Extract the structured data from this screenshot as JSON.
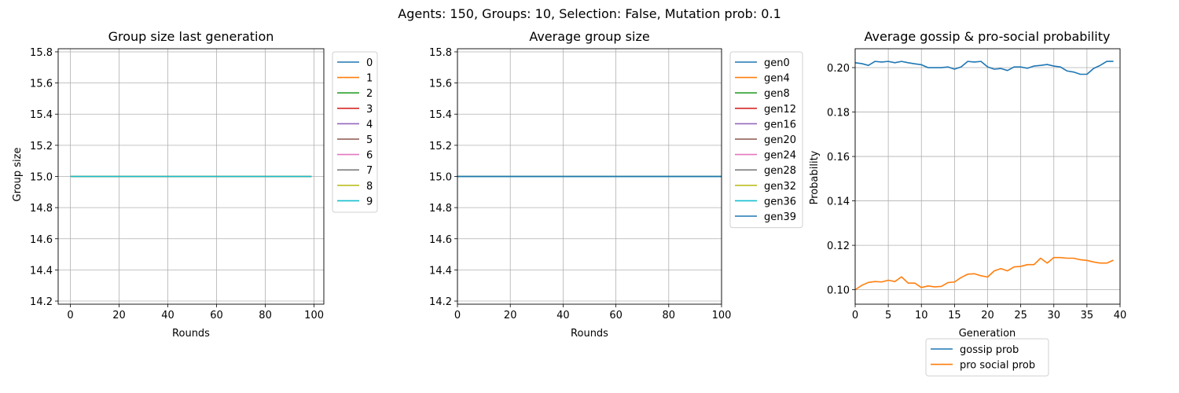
{
  "suptitle": "Agents: 150, Groups: 10, Selection: False, Mutation prob: 0.1",
  "chart_data": [
    {
      "type": "line",
      "title": "Group size last generation",
      "xlabel": "Rounds",
      "ylabel": "Group size",
      "xlim": [
        -5,
        104
      ],
      "ylim": [
        14.18,
        15.82
      ],
      "xticks": [
        0,
        20,
        40,
        60,
        80,
        100
      ],
      "yticks": [
        14.2,
        14.4,
        14.6,
        14.8,
        15.0,
        15.2,
        15.4,
        15.6,
        15.8
      ],
      "grid": true,
      "legend_position": "outside-right",
      "x_range": [
        0,
        99
      ],
      "series": [
        {
          "name": "0",
          "value": 15.0,
          "color": "#1f77b4"
        },
        {
          "name": "1",
          "value": 15.0,
          "color": "#ff7f0e"
        },
        {
          "name": "2",
          "value": 15.0,
          "color": "#2ca02c"
        },
        {
          "name": "3",
          "value": 15.0,
          "color": "#d62728"
        },
        {
          "name": "4",
          "value": 15.0,
          "color": "#9467bd"
        },
        {
          "name": "5",
          "value": 15.0,
          "color": "#8c564b"
        },
        {
          "name": "6",
          "value": 15.0,
          "color": "#e377c2"
        },
        {
          "name": "7",
          "value": 15.0,
          "color": "#7f7f7f"
        },
        {
          "name": "8",
          "value": 15.0,
          "color": "#bcbd22"
        },
        {
          "name": "9",
          "value": 15.0,
          "color": "#17becf"
        }
      ]
    },
    {
      "type": "line",
      "title": "Average group size",
      "xlabel": "Rounds",
      "ylabel": "",
      "xlim": [
        0,
        100
      ],
      "ylim": [
        14.18,
        15.82
      ],
      "xticks": [
        0,
        20,
        40,
        60,
        80,
        100
      ],
      "yticks": [
        14.2,
        14.4,
        14.6,
        14.8,
        15.0,
        15.2,
        15.4,
        15.6,
        15.8
      ],
      "grid": true,
      "legend_position": "outside-right",
      "x_range": [
        0,
        100
      ],
      "series": [
        {
          "name": "gen0",
          "value": 15.0,
          "color": "#1f77b4"
        },
        {
          "name": "gen4",
          "value": 15.0,
          "color": "#ff7f0e"
        },
        {
          "name": "gen8",
          "value": 15.0,
          "color": "#2ca02c"
        },
        {
          "name": "gen12",
          "value": 15.0,
          "color": "#d62728"
        },
        {
          "name": "gen16",
          "value": 15.0,
          "color": "#9467bd"
        },
        {
          "name": "gen20",
          "value": 15.0,
          "color": "#8c564b"
        },
        {
          "name": "gen24",
          "value": 15.0,
          "color": "#e377c2"
        },
        {
          "name": "gen28",
          "value": 15.0,
          "color": "#7f7f7f"
        },
        {
          "name": "gen32",
          "value": 15.0,
          "color": "#bcbd22"
        },
        {
          "name": "gen36",
          "value": 15.0,
          "color": "#17becf"
        },
        {
          "name": "gen39",
          "value": 15.0,
          "color": "#1f77b4"
        }
      ]
    },
    {
      "type": "line",
      "title": "Average gossip & pro-social probability",
      "xlabel": "Generation",
      "ylabel": "Probability",
      "xlim": [
        0,
        40
      ],
      "ylim": [
        0.0935,
        0.2085
      ],
      "xticks": [
        0,
        5,
        10,
        15,
        20,
        25,
        30,
        35,
        40
      ],
      "yticks": [
        0.1,
        0.12,
        0.14,
        0.16,
        0.18,
        0.2
      ],
      "ytick_labels": [
        "0.10",
        "0.12",
        "0.14",
        "0.16",
        "0.18",
        "0.20"
      ],
      "grid": true,
      "legend_position": "below",
      "x": [
        0,
        1,
        2,
        3,
        4,
        5,
        6,
        7,
        8,
        9,
        10,
        11,
        12,
        13,
        14,
        15,
        16,
        17,
        18,
        19,
        20,
        21,
        22,
        23,
        24,
        25,
        26,
        27,
        28,
        29,
        30,
        31,
        32,
        33,
        34,
        35,
        36,
        37,
        38,
        39
      ],
      "series": [
        {
          "name": "gossip prob",
          "color": "#1f77b4",
          "values": [
            0.2022,
            0.2018,
            0.201,
            0.2028,
            0.2025,
            0.2028,
            0.2022,
            0.2028,
            0.2022,
            0.2017,
            0.2013,
            0.2,
            0.2,
            0.2,
            0.2003,
            0.1993,
            0.2003,
            0.2028,
            0.2025,
            0.2028,
            0.2003,
            0.1993,
            0.1996,
            0.1987,
            0.2003,
            0.2003,
            0.1997,
            0.2007,
            0.201,
            0.2014,
            0.2007,
            0.2003,
            0.1985,
            0.198,
            0.197,
            0.197,
            0.1996,
            0.201,
            0.2028,
            0.2028
          ]
        },
        {
          "name": "pro social prob",
          "color": "#ff7f0e",
          "values": [
            0.1,
            0.102,
            0.1033,
            0.1037,
            0.1035,
            0.1043,
            0.1037,
            0.1058,
            0.103,
            0.103,
            0.101,
            0.1017,
            0.1013,
            0.1015,
            0.1032,
            0.1035,
            0.1055,
            0.107,
            0.1072,
            0.1063,
            0.1057,
            0.1085,
            0.1095,
            0.1085,
            0.1103,
            0.1105,
            0.1113,
            0.1113,
            0.1142,
            0.112,
            0.1145,
            0.1145,
            0.1142,
            0.1142,
            0.1135,
            0.1132,
            0.1125,
            0.112,
            0.112,
            0.1133
          ]
        }
      ]
    }
  ]
}
